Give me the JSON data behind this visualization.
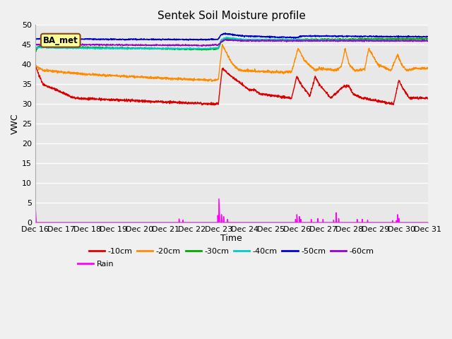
{
  "title": "Sentek Soil Moisture profile",
  "xlabel": "Time",
  "ylabel": "VWC",
  "xlim": [
    0,
    15
  ],
  "ylim": [
    0,
    50
  ],
  "yticks": [
    0,
    5,
    10,
    15,
    20,
    25,
    30,
    35,
    40,
    45,
    50
  ],
  "xtick_labels": [
    "Dec 16",
    "Dec 17",
    "Dec 18",
    "Dec 19",
    "Dec 20",
    "Dec 21",
    "Dec 22",
    "Dec 23",
    "Dec 24",
    "Dec 25",
    "Dec 26",
    "Dec 27",
    "Dec 28",
    "Dec 29",
    "Dec 30",
    "Dec 31"
  ],
  "annotation_text": "BA_met",
  "annotation_box_color": "#FFFF99",
  "annotation_box_edge": "#8B4513",
  "colors": {
    "-10cm": "#DD0000",
    "-20cm": "#FF8C00",
    "-30cm": "#00AA00",
    "-40cm": "#00CCCC",
    "-50cm": "#0000CC",
    "-60cm": "#9900CC",
    "Rain": "#FF00FF"
  },
  "background_color": "#E8E8E8",
  "grid_color": "#FFFFFF",
  "fig_bg": "#F0F0F0",
  "n_points": 2000
}
